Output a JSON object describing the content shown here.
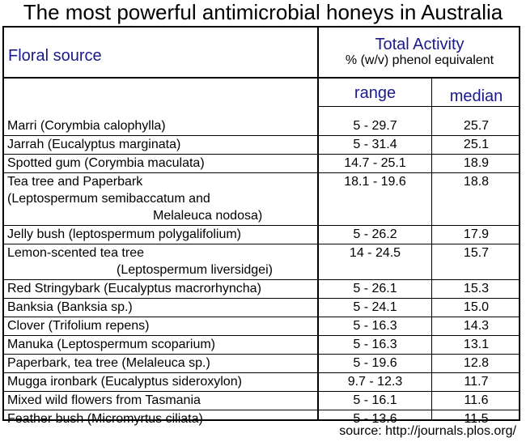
{
  "title": "The most powerful antimicrobial honeys in Australia",
  "header": {
    "floral_source": "Floral source",
    "total_activity": "Total Activity",
    "total_activity_sub": "% (w/v) phenol equivalent",
    "range": "range",
    "median": "median"
  },
  "rows": [
    {
      "source": [
        "Marri (Corymbia calophylla)"
      ],
      "range": "5 - 29.7",
      "median": "25.7"
    },
    {
      "source": [
        "Jarrah (Eucalyptus marginata)"
      ],
      "range": "5 - 31.4",
      "median": "25.1"
    },
    {
      "source": [
        "Spotted gum (Corymbia maculata)"
      ],
      "range": "14.7 - 25.1",
      "median": "18.9"
    },
    {
      "source": [
        "Tea tree and Paperbark",
        "(Leptospermum semibaccatum and",
        "Melaleuca nodosa)"
      ],
      "range": "18.1 - 19.6",
      "median": "18.8"
    },
    {
      "source": [
        "Jelly bush (leptospermum polygalifolium)"
      ],
      "range": "5 - 26.2",
      "median": "17.9"
    },
    {
      "source": [
        "Lemon-scented tea tree",
        "(Leptospermum liversidgei)"
      ],
      "range": "14 - 24.5",
      "median": "15.7"
    },
    {
      "source": [
        "Red Stringybark (Eucalyptus macrorhyncha)"
      ],
      "range": "5 - 26.1",
      "median": "15.3"
    },
    {
      "source": [
        "Banksia (Banksia sp.)"
      ],
      "range": "5 - 24.1",
      "median": "15.0"
    },
    {
      "source": [
        "Clover (Trifolium repens)"
      ],
      "range": "5 - 16.3",
      "median": "14.3"
    },
    {
      "source": [
        "Manuka (Leptospermum scoparium)"
      ],
      "range": "5 - 16.3",
      "median": "13.1"
    },
    {
      "source": [
        "Paperbark, tea tree (Melaleuca sp.)"
      ],
      "range": "5 - 19.6",
      "median": "12.8"
    },
    {
      "source": [
        "Mugga ironbark (Eucalyptus sideroxylon)"
      ],
      "range": "9.7 - 12.3",
      "median": "11.7"
    },
    {
      "source": [
        "Mixed wild flowers from Tasmania"
      ],
      "range": "5 - 16.1",
      "median": "11.6"
    },
    {
      "source": [
        "Feather bush (Micromyrtus ciliata)"
      ],
      "range": "5 - 13.6",
      "median": "11.5"
    }
  ],
  "footer": {
    "source_note": "source: http://journals.plos.org/"
  },
  "colors": {
    "header_text": "#1a1a8c",
    "body_text": "#000000",
    "rules": "#000000"
  }
}
